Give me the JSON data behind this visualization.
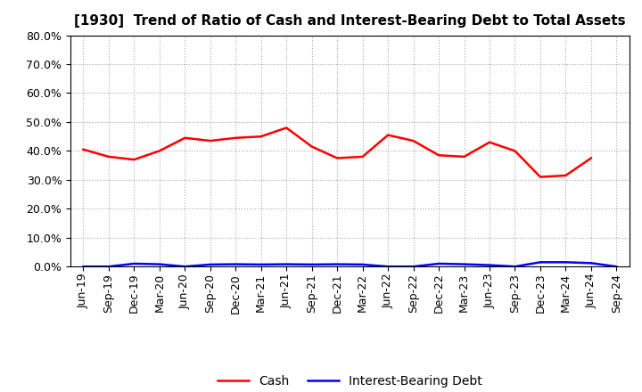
{
  "title": "[1930]  Trend of Ratio of Cash and Interest-Bearing Debt to Total Assets",
  "x_labels": [
    "Jun-19",
    "Sep-19",
    "Dec-19",
    "Mar-20",
    "Jun-20",
    "Sep-20",
    "Dec-20",
    "Mar-21",
    "Jun-21",
    "Sep-21",
    "Dec-21",
    "Mar-22",
    "Jun-22",
    "Sep-22",
    "Dec-22",
    "Mar-23",
    "Jun-23",
    "Sep-23",
    "Dec-23",
    "Mar-24",
    "Jun-24",
    "Sep-24"
  ],
  "cash": [
    40.5,
    38.0,
    37.0,
    40.0,
    44.5,
    43.5,
    44.5,
    45.0,
    48.0,
    41.5,
    37.5,
    38.0,
    45.5,
    43.5,
    38.5,
    38.0,
    43.0,
    40.0,
    31.0,
    31.5,
    37.5,
    null
  ],
  "interest_bearing_debt": [
    0.0,
    0.0,
    1.0,
    0.8,
    0.0,
    0.7,
    0.8,
    0.7,
    0.8,
    0.7,
    0.8,
    0.7,
    0.0,
    0.0,
    1.0,
    0.8,
    0.5,
    0.0,
    1.5,
    1.5,
    1.2,
    0.0
  ],
  "ylim": [
    0,
    80
  ],
  "yticks": [
    0,
    10,
    20,
    30,
    40,
    50,
    60,
    70,
    80
  ],
  "cash_color": "#ff0000",
  "debt_color": "#0000ff",
  "grid_color": "#aaaaaa",
  "background_color": "#ffffff",
  "legend_cash": "Cash",
  "legend_debt": "Interest-Bearing Debt",
  "title_fontsize": 11,
  "tick_fontsize": 9
}
